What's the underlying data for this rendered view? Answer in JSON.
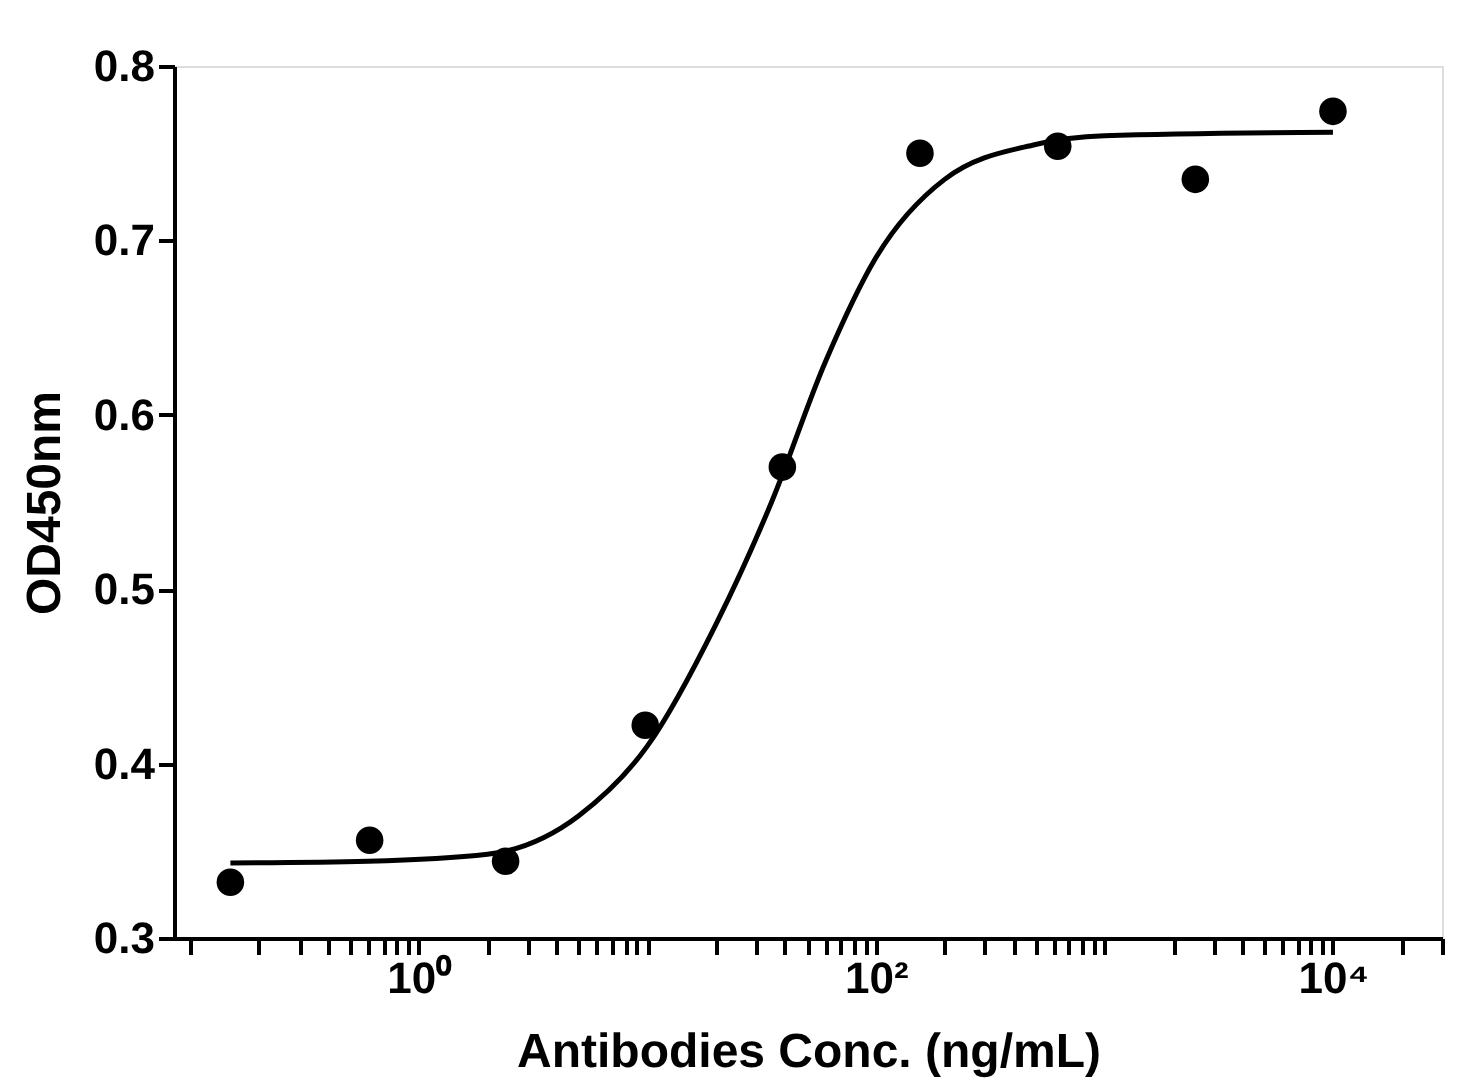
{
  "chart_data": {
    "type": "scatter",
    "xlabel": "Antibodies Conc. (ng/mL)",
    "ylabel": "OD450nm",
    "log": "x",
    "marker": "circle",
    "series": [
      {
        "color": "#000000",
        "x": [
          0.15,
          0.61,
          2.4,
          9.8,
          39,
          156,
          625,
          2500,
          10000
        ],
        "values": [
          0.332,
          0.356,
          0.344,
          0.422,
          0.57,
          0.75,
          0.754,
          0.735,
          0.774
        ]
      },
      {
        "type": "line",
        "color": "#000000",
        "marker": "none",
        "line_style": "solid",
        "x": [
          0.15,
          0.6,
          2,
          5,
          10,
          20,
          35,
          60,
          100,
          200,
          500,
          1000,
          10000
        ],
        "values": [
          0.343,
          0.344,
          0.348,
          0.37,
          0.41,
          0.48,
          0.55,
          0.63,
          0.69,
          0.735,
          0.755,
          0.76,
          0.762
        ]
      }
    ],
    "xlim": [
      0.085,
      30000
    ],
    "ylim": [
      0.3,
      0.8
    ],
    "yticks": [
      0.3,
      0.4,
      0.5,
      0.6,
      0.7,
      0.8
    ],
    "xticks": [
      {
        "value": 0.1,
        "label": null
      },
      {
        "value": 0.2,
        "label": null
      },
      {
        "value": 0.3,
        "label": null
      },
      {
        "value": 0.4,
        "label": null
      },
      {
        "value": 0.5,
        "label": null
      },
      {
        "value": 0.6,
        "label": null
      },
      {
        "value": 0.7,
        "label": null
      },
      {
        "value": 0.8,
        "label": null
      },
      {
        "value": 0.9,
        "label": null
      },
      {
        "value": 1,
        "label": "10⁰"
      },
      {
        "value": 2,
        "label": null
      },
      {
        "value": 3,
        "label": null
      },
      {
        "value": 4,
        "label": null
      },
      {
        "value": 5,
        "label": null
      },
      {
        "value": 6,
        "label": null
      },
      {
        "value": 7,
        "label": null
      },
      {
        "value": 8,
        "label": null
      },
      {
        "value": 9,
        "label": null
      },
      {
        "value": 10,
        "label": null
      },
      {
        "value": 20,
        "label": null
      },
      {
        "value": 30,
        "label": null
      },
      {
        "value": 40,
        "label": null
      },
      {
        "value": 50,
        "label": null
      },
      {
        "value": 60,
        "label": null
      },
      {
        "value": 70,
        "label": null
      },
      {
        "value": 80,
        "label": null
      },
      {
        "value": 90,
        "label": null
      },
      {
        "value": 100,
        "label": "10²"
      },
      {
        "value": 200,
        "label": null
      },
      {
        "value": 300,
        "label": null
      },
      {
        "value": 400,
        "label": null
      },
      {
        "value": 500,
        "label": null
      },
      {
        "value": 600,
        "label": null
      },
      {
        "value": 700,
        "label": null
      },
      {
        "value": 800,
        "label": null
      },
      {
        "value": 900,
        "label": null
      },
      {
        "value": 1000,
        "label": null
      },
      {
        "value": 2000,
        "label": null
      },
      {
        "value": 3000,
        "label": null
      },
      {
        "value": 4000,
        "label": null
      },
      {
        "value": 5000,
        "label": null
      },
      {
        "value": 6000,
        "label": null
      },
      {
        "value": 7000,
        "label": null
      },
      {
        "value": 8000,
        "label": null
      },
      {
        "value": 9000,
        "label": null
      },
      {
        "value": 10000,
        "label": "10⁴"
      },
      {
        "value": 20000,
        "label": null
      },
      {
        "value": 30000,
        "label": null
      }
    ]
  }
}
